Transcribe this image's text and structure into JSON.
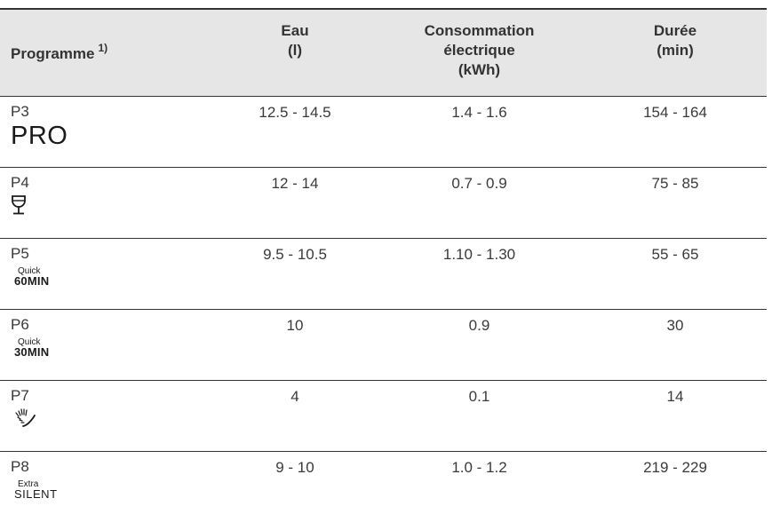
{
  "table": {
    "headers": {
      "programme": "Programme",
      "programme_note": "1)",
      "water_line1": "Eau",
      "water_line2": "(l)",
      "energy_line1": "Consommation",
      "energy_line2": "électrique",
      "energy_line3": "(kWh)",
      "duration_line1": "Durée",
      "duration_line2": "(min)"
    },
    "rows": [
      {
        "code": "P3",
        "symbol_icon": "pro-label",
        "symbol_text": "PRO",
        "water": "12.5 - 14.5",
        "energy": "1.4 - 1.6",
        "duration": "154 - 164"
      },
      {
        "code": "P4",
        "symbol_icon": "wine-glass-icon",
        "water": "12 - 14",
        "energy": "0.7 - 0.9",
        "duration": "75 - 85"
      },
      {
        "code": "P5",
        "symbol_icon": "quick-60min-label",
        "symbol_top": "Quick",
        "symbol_bottom": "60MIN",
        "water": "9.5 - 10.5",
        "energy": "1.10 - 1.30",
        "duration": "55 - 65"
      },
      {
        "code": "P6",
        "symbol_icon": "quick-30min-label",
        "symbol_top": "Quick",
        "symbol_bottom": "30MIN",
        "water": "10",
        "energy": "0.9",
        "duration": "30"
      },
      {
        "code": "P7",
        "symbol_icon": "rinse-spray-icon",
        "water": "4",
        "energy": "0.1",
        "duration": "14"
      },
      {
        "code": "P8",
        "symbol_icon": "extra-silent-label",
        "symbol_top": "Extra",
        "symbol_bottom": "SILENT",
        "water": "9 - 10",
        "energy": "1.0 - 1.2",
        "duration": "219 - 229"
      }
    ]
  },
  "colors": {
    "header_background": "#e6e6e6",
    "rule_color": "#333333",
    "text_color": "#3a3a3a"
  }
}
